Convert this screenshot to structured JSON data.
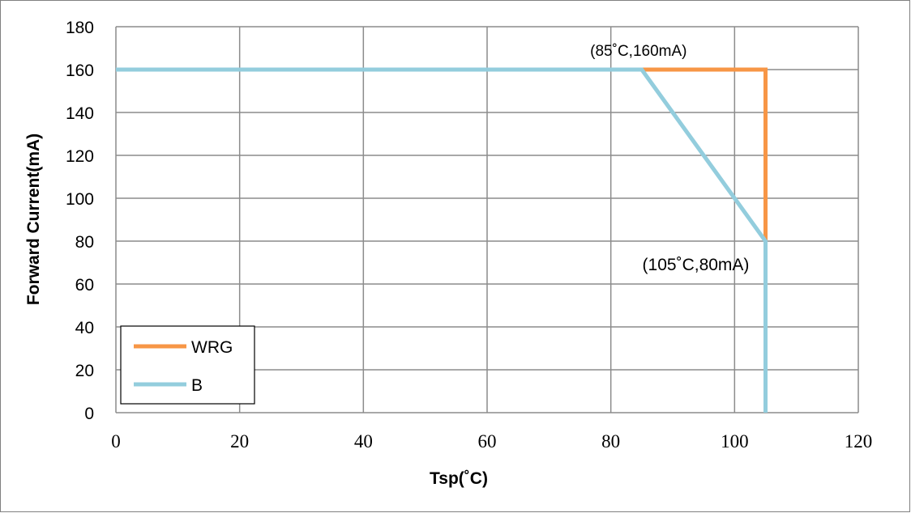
{
  "chart_data": {
    "type": "line",
    "xlabel": "Tsp(˚C)",
    "ylabel": "Forward Current(mA)",
    "xlim": [
      0,
      120
    ],
    "ylim": [
      0,
      180
    ],
    "x_ticks": [
      "0",
      "20",
      "40",
      "60",
      "80",
      "100",
      "120"
    ],
    "y_ticks": [
      "0",
      "20",
      "40",
      "60",
      "80",
      "100",
      "120",
      "140",
      "160",
      "180"
    ],
    "grid": true,
    "legend_position": "bottom-left",
    "series": [
      {
        "name": "WRG",
        "color": "#f79646",
        "points": [
          [
            0,
            160
          ],
          [
            85,
            160
          ],
          [
            105,
            160
          ],
          [
            105,
            80
          ],
          [
            105,
            0
          ]
        ]
      },
      {
        "name": "B",
        "color": "#93cddd",
        "points": [
          [
            0,
            160
          ],
          [
            85,
            160
          ],
          [
            105,
            80
          ],
          [
            105,
            0
          ]
        ]
      }
    ],
    "annotations": [
      {
        "text": "(85˚C,160mA)",
        "x": 85,
        "y": 160
      },
      {
        "text": "(105˚C,80mA)",
        "x": 105,
        "y": 80
      }
    ]
  }
}
